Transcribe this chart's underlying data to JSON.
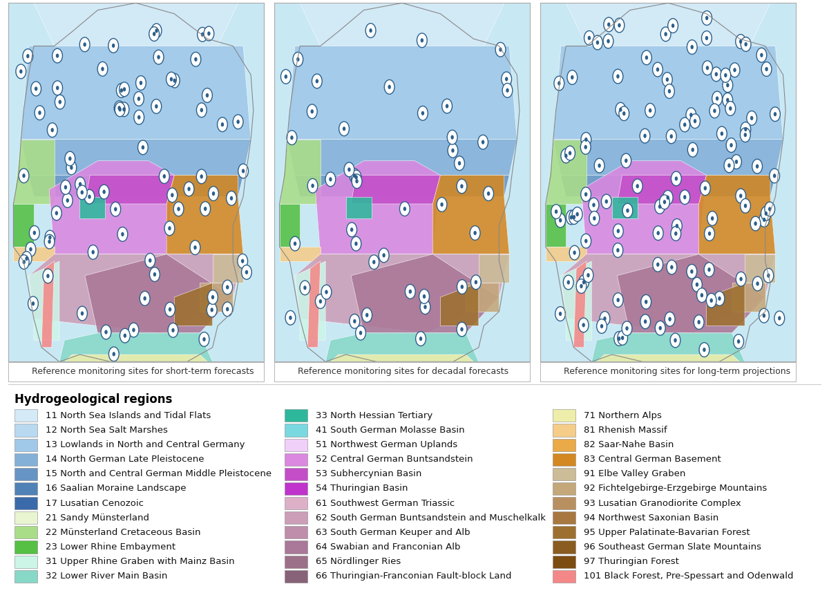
{
  "map_labels": [
    "Reference monitoring sites for short-term forecasts",
    "Reference monitoring sites for decadal forecasts",
    "Reference monitoring sites for long-term projections"
  ],
  "legend_title": "Hydrogeological regions",
  "legend_items_col1": [
    {
      "color": "#d4eaf7",
      "label": "11 North Sea Islands and Tidal Flats"
    },
    {
      "color": "#b8d9f0",
      "label": "12 North Sea Salt Marshes"
    },
    {
      "color": "#a0c8e8",
      "label": "13 Lowlands in North and Central Germany"
    },
    {
      "color": "#84b0d8",
      "label": "14 North German Late Pleistocene"
    },
    {
      "color": "#6694c4",
      "label": "15 North and Central German Middle Pleistocene"
    },
    {
      "color": "#5082b8",
      "label": "16 Saalian Moraine Landscape"
    },
    {
      "color": "#3a6aaa",
      "label": "17 Lusatian Cenozoic"
    },
    {
      "color": "#e8f5d0",
      "label": "21 Sandy Münsterland"
    },
    {
      "color": "#aadd88",
      "label": "22 Münsterland Cretaceous Basin"
    },
    {
      "color": "#55c044",
      "label": "23 Lower Rhine Embayment"
    },
    {
      "color": "#ccf5e8",
      "label": "31 Upper Rhine Graben with Mainz Basin"
    },
    {
      "color": "#88d8c8",
      "label": "32 Lower River Main Basin"
    }
  ],
  "legend_items_col2": [
    {
      "color": "#2db89c",
      "label": "33 North Hessian Tertiary"
    },
    {
      "color": "#7ad8e0",
      "label": "41 South German Molasse Basin"
    },
    {
      "color": "#f0d0f8",
      "label": "51 Northwest German Uplands"
    },
    {
      "color": "#da88e0",
      "label": "52 Central German Buntsandstein"
    },
    {
      "color": "#c44ec8",
      "label": "53 Subhercynian Basin"
    },
    {
      "color": "#c033cc",
      "label": "54 Thuringian Basin"
    },
    {
      "color": "#ddb0c8",
      "label": "61 Southwest German Triassic"
    },
    {
      "color": "#cc9eb8",
      "label": "62 South German Buntsandstein and Muschelkalk"
    },
    {
      "color": "#be8eaa",
      "label": "63 South German Keuper and Alb"
    },
    {
      "color": "#aa7898",
      "label": "64 Swabian and Franconian Alb"
    },
    {
      "color": "#9c7088",
      "label": "65 Nördlinger Ries"
    },
    {
      "color": "#886278",
      "label": "66 Thuringian-Franconian Fault-block Land"
    }
  ],
  "legend_items_col3": [
    {
      "color": "#eeeeaa",
      "label": "71 Northern Alps"
    },
    {
      "color": "#f5cc88",
      "label": "81 Rhenish Massif"
    },
    {
      "color": "#eaaa48",
      "label": "82 Saar-Nahe Basin"
    },
    {
      "color": "#d48822",
      "label": "83 Central German Basement"
    },
    {
      "color": "#ccbc98",
      "label": "91 Elbe Valley Graben"
    },
    {
      "color": "#c4a87a",
      "label": "92 Fichtelgebirge-Erzgebirge Mountains"
    },
    {
      "color": "#b89060",
      "label": "93 Lusatian Granodiorite Complex"
    },
    {
      "color": "#a87840",
      "label": "94 Northwest Saxonian Basin"
    },
    {
      "color": "#9e7030",
      "label": "95 Upper Palatinate-Bavarian Forest"
    },
    {
      "color": "#8a5c20",
      "label": "96 Southeast German Slate Mountains"
    },
    {
      "color": "#7c4c10",
      "label": "97 Thuringian Forest"
    },
    {
      "color": "#f48888",
      "label": "101 Black Forest, Pre-Spessart and Odenwald"
    }
  ],
  "bg_color": "#ffffff",
  "map_bg_water": "#c8e8f0",
  "map_panel_bg": "#e0eff5",
  "marker_edge_color": "#2c5f8a",
  "label_font_size": 9.5,
  "legend_title_font_size": 12,
  "caption_font_size": 9
}
